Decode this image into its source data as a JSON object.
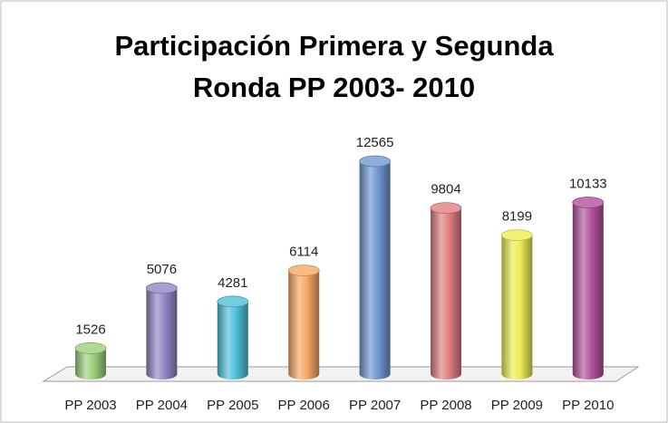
{
  "chart_data": {
    "type": "bar",
    "title": "Participación Primera y Segunda\nRonda PP 2003- 2010",
    "categories": [
      "PP 2003",
      "PP 2004",
      "PP 2005",
      "PP 2006",
      "PP 2007",
      "PP 2008",
      "PP 2009",
      "PP 2010"
    ],
    "values": [
      1526,
      5076,
      4281,
      6114,
      12565,
      9804,
      8199,
      10133
    ],
    "colors": [
      "#9ccf7c",
      "#9585c6",
      "#4fc1dc",
      "#f7a865",
      "#7098d4",
      "#e07f82",
      "#eded55",
      "#b4529f"
    ]
  }
}
